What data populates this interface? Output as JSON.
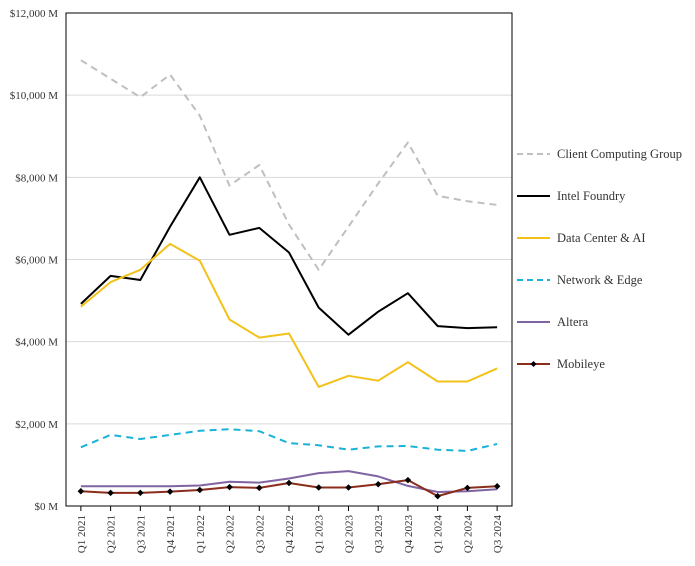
{
  "chart_data": {
    "type": "line",
    "title": "",
    "xlabel": "",
    "ylabel": "",
    "categories": [
      "Q1 2021",
      "Q2 2021",
      "Q3 2021",
      "Q4 2021",
      "Q1 2022",
      "Q2 2022",
      "Q3 2022",
      "Q4 2022",
      "Q1 2023",
      "Q2 2023",
      "Q3 2023",
      "Q4 2023",
      "Q1 2024",
      "Q2 2024",
      "Q3 2024"
    ],
    "ylim": [
      0,
      12000
    ],
    "yticks": [
      0,
      2000,
      4000,
      6000,
      8000,
      10000,
      12000
    ],
    "ytick_labels": [
      "$0 M",
      "$2,000 M",
      "$4,000 M",
      "$6,000 M",
      "$8,000 M",
      "$10,000 M",
      "$12,000 M"
    ],
    "grid": true,
    "legend_position": "right",
    "series": [
      {
        "name": "Client Computing Group",
        "color": "#bfbfbf",
        "style": "dashed",
        "marker": "none",
        "values": [
          10850,
          10400,
          9950,
          10500,
          9500,
          7800,
          8300,
          6850,
          5750,
          6800,
          7850,
          8850,
          7550,
          7420,
          7330
        ]
      },
      {
        "name": "Intel Foundry",
        "color": "#000000",
        "style": "solid",
        "marker": "none",
        "values": [
          4920,
          5600,
          5500,
          6800,
          8000,
          6600,
          6770,
          6170,
          4830,
          4170,
          4730,
          5180,
          4380,
          4330,
          4350
        ]
      },
      {
        "name": "Data Center & AI",
        "color": "#f2c21b",
        "style": "solid",
        "marker": "none",
        "values": [
          4850,
          5450,
          5750,
          6380,
          5970,
          4540,
          4100,
          4200,
          2900,
          3170,
          3050,
          3500,
          3030,
          3030,
          3350
        ]
      },
      {
        "name": "Network & Edge",
        "color": "#1ab2d6",
        "style": "dashed",
        "marker": "none",
        "values": [
          1430,
          1730,
          1630,
          1730,
          1830,
          1870,
          1820,
          1530,
          1480,
          1370,
          1450,
          1460,
          1370,
          1340,
          1510
        ]
      },
      {
        "name": "Altera",
        "color": "#8064a2",
        "style": "solid",
        "marker": "none",
        "values": [
          480,
          480,
          480,
          480,
          500,
          590,
          570,
          670,
          800,
          850,
          720,
          490,
          340,
          360,
          410
        ]
      },
      {
        "name": "Mobileye",
        "color": "#8b2d1c",
        "style": "solid",
        "marker": "diamond",
        "values": [
          360,
          320,
          320,
          350,
          390,
          460,
          440,
          560,
          450,
          450,
          530,
          630,
          240,
          440,
          480
        ]
      }
    ]
  }
}
